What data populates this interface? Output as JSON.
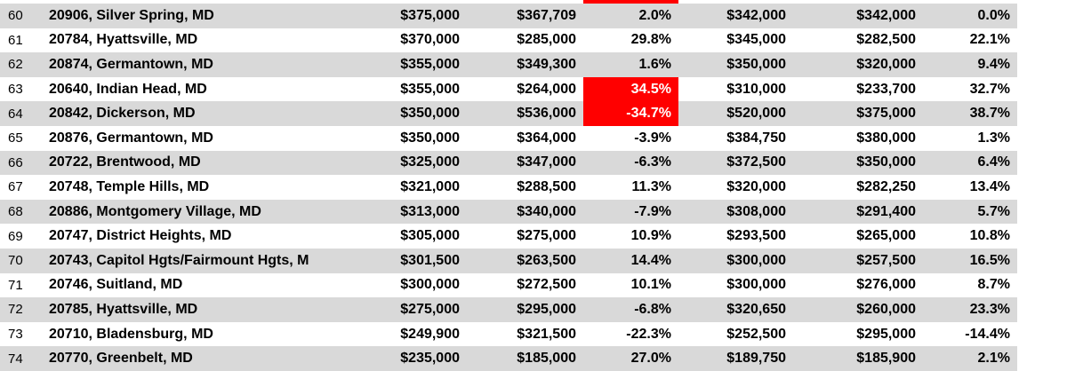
{
  "colors": {
    "band": "#d9d9d9",
    "highlight": "#ff0000",
    "highlight_text": "#ffffff",
    "text": "#000000"
  },
  "partial_row_above": {
    "highlighted_cell_visible": true
  },
  "table": {
    "rows": [
      {
        "num": "60",
        "location": "20906, Silver Spring, MD",
        "price1": "$375,000",
        "price2": "$367,709",
        "pct1": "2.0%",
        "pct1_highlight": false,
        "price3": "$342,000",
        "price4": "$342,000",
        "pct2": "0.0%"
      },
      {
        "num": "61",
        "location": "20784, Hyattsville, MD",
        "price1": "$370,000",
        "price2": "$285,000",
        "pct1": "29.8%",
        "pct1_highlight": false,
        "price3": "$345,000",
        "price4": "$282,500",
        "pct2": "22.1%"
      },
      {
        "num": "62",
        "location": "20874, Germantown, MD",
        "price1": "$355,000",
        "price2": "$349,300",
        "pct1": "1.6%",
        "pct1_highlight": false,
        "price3": "$350,000",
        "price4": "$320,000",
        "pct2": "9.4%"
      },
      {
        "num": "63",
        "location": "20640, Indian Head, MD",
        "price1": "$355,000",
        "price2": "$264,000",
        "pct1": "34.5%",
        "pct1_highlight": true,
        "price3": "$310,000",
        "price4": "$233,700",
        "pct2": "32.7%"
      },
      {
        "num": "64",
        "location": "20842, Dickerson, MD",
        "price1": "$350,000",
        "price2": "$536,000",
        "pct1": "-34.7%",
        "pct1_highlight": true,
        "price3": "$520,000",
        "price4": "$375,000",
        "pct2": "38.7%"
      },
      {
        "num": "65",
        "location": "20876, Germantown, MD",
        "price1": "$350,000",
        "price2": "$364,000",
        "pct1": "-3.9%",
        "pct1_highlight": false,
        "price3": "$384,750",
        "price4": "$380,000",
        "pct2": "1.3%"
      },
      {
        "num": "66",
        "location": "20722, Brentwood, MD",
        "price1": "$325,000",
        "price2": "$347,000",
        "pct1": "-6.3%",
        "pct1_highlight": false,
        "price3": "$372,500",
        "price4": "$350,000",
        "pct2": "6.4%"
      },
      {
        "num": "67",
        "location": "20748, Temple Hills, MD",
        "price1": "$321,000",
        "price2": "$288,500",
        "pct1": "11.3%",
        "pct1_highlight": false,
        "price3": "$320,000",
        "price4": "$282,250",
        "pct2": "13.4%"
      },
      {
        "num": "68",
        "location": "20886, Montgomery Village, MD",
        "price1": "$313,000",
        "price2": "$340,000",
        "pct1": "-7.9%",
        "pct1_highlight": false,
        "price3": "$308,000",
        "price4": "$291,400",
        "pct2": "5.7%"
      },
      {
        "num": "69",
        "location": "20747, District Heights, MD",
        "price1": "$305,000",
        "price2": "$275,000",
        "pct1": "10.9%",
        "pct1_highlight": false,
        "price3": "$293,500",
        "price4": "$265,000",
        "pct2": "10.8%"
      },
      {
        "num": "70",
        "location": "20743, Capitol Hgts/Fairmount Hgts, M",
        "price1": "$301,500",
        "price2": "$263,500",
        "pct1": "14.4%",
        "pct1_highlight": false,
        "price3": "$300,000",
        "price4": "$257,500",
        "pct2": "16.5%"
      },
      {
        "num": "71",
        "location": "20746, Suitland, MD",
        "price1": "$300,000",
        "price2": "$272,500",
        "pct1": "10.1%",
        "pct1_highlight": false,
        "price3": "$300,000",
        "price4": "$276,000",
        "pct2": "8.7%"
      },
      {
        "num": "72",
        "location": "20785, Hyattsville, MD",
        "price1": "$275,000",
        "price2": "$295,000",
        "pct1": "-6.8%",
        "pct1_highlight": false,
        "price3": "$320,650",
        "price4": "$260,000",
        "pct2": "23.3%"
      },
      {
        "num": "73",
        "location": "20710, Bladensburg, MD",
        "price1": "$249,900",
        "price2": "$321,500",
        "pct1": "-22.3%",
        "pct1_highlight": false,
        "price3": "$252,500",
        "price4": "$295,000",
        "pct2": "-14.4%"
      },
      {
        "num": "74",
        "location": "20770, Greenbelt, MD",
        "price1": "$235,000",
        "price2": "$185,000",
        "pct1": "27.0%",
        "pct1_highlight": false,
        "price3": "$189,750",
        "price4": "$185,900",
        "pct2": "2.1%"
      }
    ]
  }
}
